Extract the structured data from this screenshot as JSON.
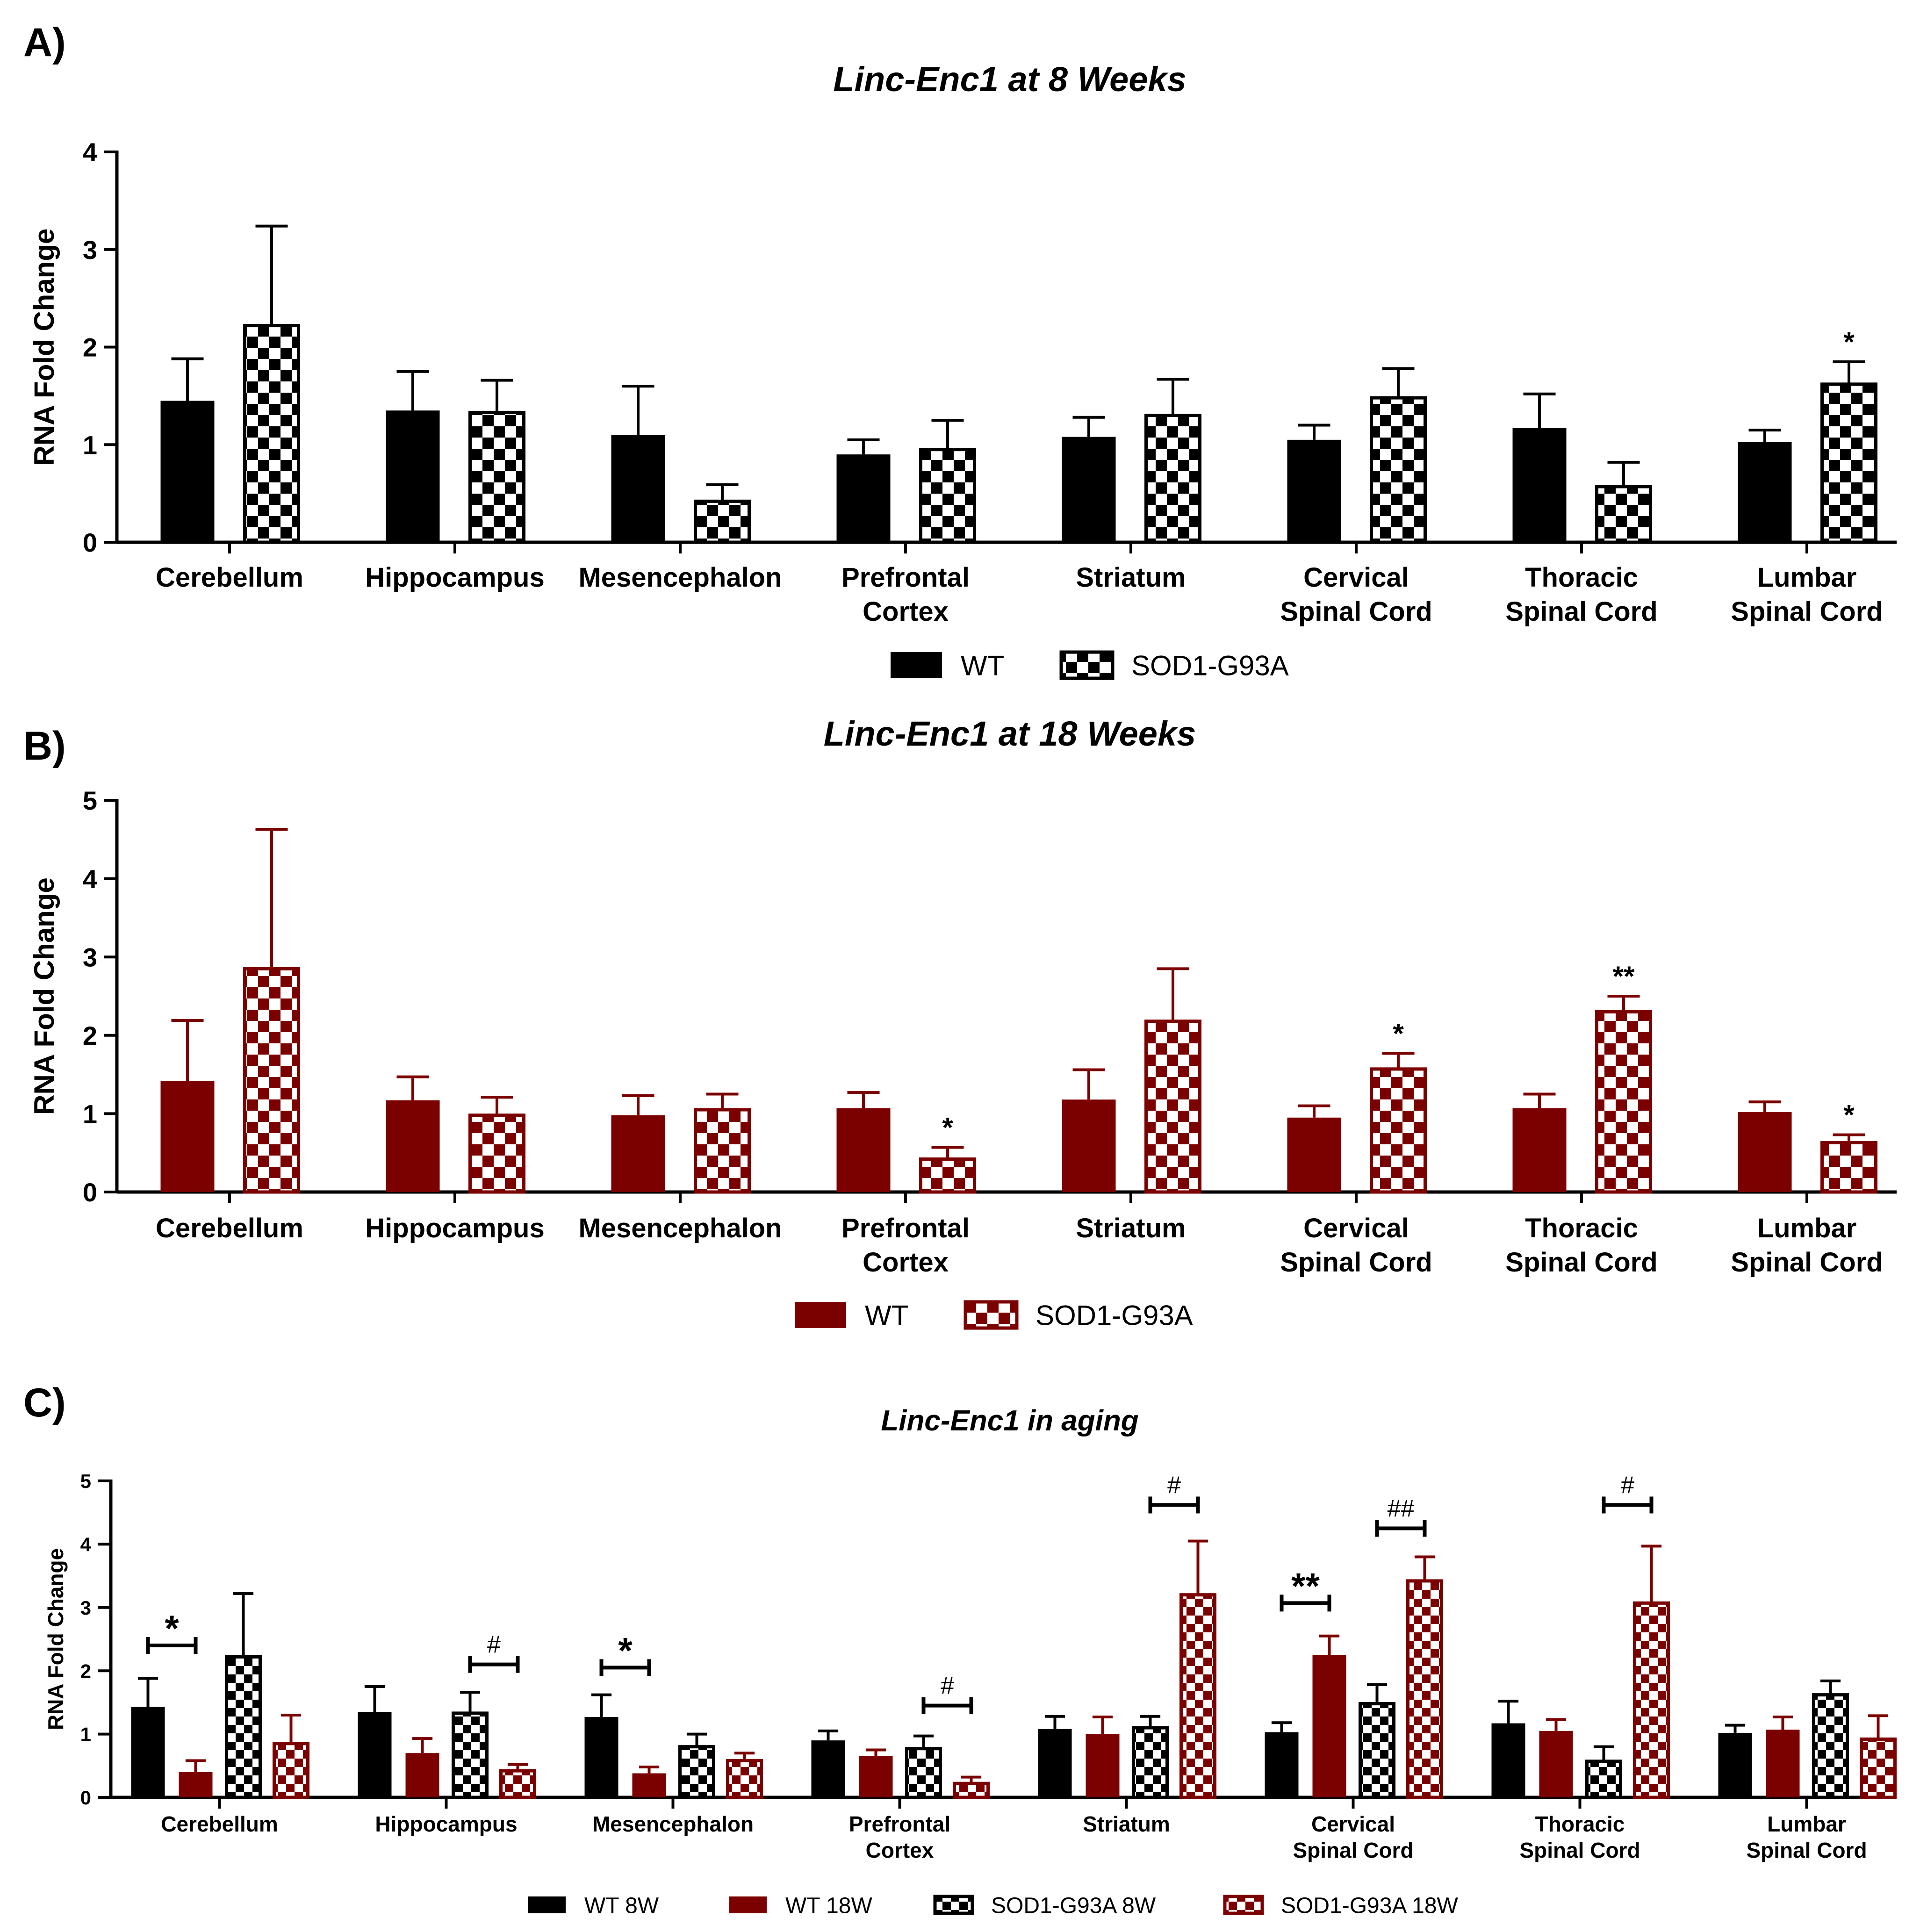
{
  "chart_data": [
    {
      "panel_label": "A)",
      "type": "bar",
      "title": "Linc-Enc1 at 8 Weeks",
      "xlabel": "",
      "ylabel": "RNA Fold Change",
      "ylim": [
        0,
        4
      ],
      "yticks": [
        "0",
        "1",
        "2",
        "3",
        "4"
      ],
      "categories": [
        [
          "Cerebellum"
        ],
        [
          "Hippocampus"
        ],
        [
          "Mesencephalon"
        ],
        [
          "Prefrontal",
          "Cortex"
        ],
        [
          "Striatum"
        ],
        [
          "Cervical",
          "Spinal Cord"
        ],
        [
          "Thoracic",
          "Spinal Cord"
        ],
        [
          "Lumbar",
          "Spinal Cord"
        ]
      ],
      "series": [
        {
          "name": "WT",
          "color": "#000000",
          "pattern": "solid",
          "values": [
            1.45,
            1.35,
            1.1,
            0.9,
            1.08,
            1.05,
            1.17,
            1.03
          ],
          "errors": [
            0.43,
            0.4,
            0.5,
            0.15,
            0.2,
            0.15,
            0.35,
            0.12
          ]
        },
        {
          "name": "SOD1-G93A",
          "color": "#000000",
          "pattern": "checker",
          "values": [
            2.22,
            1.33,
            0.42,
            0.95,
            1.3,
            1.48,
            0.57,
            1.62
          ],
          "errors": [
            1.02,
            0.33,
            0.17,
            0.3,
            0.37,
            0.3,
            0.25,
            0.23
          ]
        }
      ],
      "annotations": [
        {
          "category": 7,
          "series": 1,
          "text": "*"
        }
      ],
      "legend": "bottom"
    },
    {
      "panel_label": "B)",
      "type": "bar",
      "title": "Linc-Enc1 at 18 Weeks",
      "xlabel": "",
      "ylabel": "RNA Fold Change",
      "ylim": [
        0,
        5
      ],
      "yticks": [
        "0",
        "1",
        "2",
        "3",
        "4",
        "5"
      ],
      "categories": [
        [
          "Cerebellum"
        ],
        [
          "Hippocampus"
        ],
        [
          "Mesencephalon"
        ],
        [
          "Prefrontal",
          "Cortex"
        ],
        [
          "Striatum"
        ],
        [
          "Cervical",
          "Spinal Cord"
        ],
        [
          "Thoracic",
          "Spinal Cord"
        ],
        [
          "Lumbar",
          "Spinal Cord"
        ]
      ],
      "series": [
        {
          "name": "WT",
          "color": "#7b0000",
          "pattern": "solid",
          "values": [
            1.42,
            1.17,
            0.98,
            1.07,
            1.18,
            0.95,
            1.07,
            1.02
          ],
          "errors": [
            0.77,
            0.3,
            0.25,
            0.2,
            0.38,
            0.15,
            0.18,
            0.13
          ]
        },
        {
          "name": "SOD1-G93A",
          "color": "#7b0000",
          "pattern": "checker",
          "values": [
            2.85,
            0.98,
            1.05,
            0.42,
            2.18,
            1.57,
            2.3,
            0.63
          ],
          "errors": [
            1.78,
            0.23,
            0.2,
            0.15,
            0.67,
            0.2,
            0.2,
            0.1
          ]
        }
      ],
      "annotations": [
        {
          "category": 3,
          "series": 1,
          "text": "*"
        },
        {
          "category": 5,
          "series": 1,
          "text": "*"
        },
        {
          "category": 6,
          "series": 1,
          "text": "**"
        },
        {
          "category": 7,
          "series": 1,
          "text": "*"
        }
      ],
      "legend": "bottom"
    },
    {
      "panel_label": "C)",
      "type": "bar",
      "title": "Linc-Enc1 in aging",
      "xlabel": "",
      "ylabel": "RNA Fold Change",
      "ylim": [
        0,
        5
      ],
      "yticks": [
        "0",
        "1",
        "2",
        "3",
        "4",
        "5"
      ],
      "categories": [
        [
          "Cerebellum"
        ],
        [
          "Hippocampus"
        ],
        [
          "Mesencephalon"
        ],
        [
          "Prefrontal",
          "Cortex"
        ],
        [
          "Striatum"
        ],
        [
          "Cervical",
          "Spinal Cord"
        ],
        [
          "Thoracic",
          "Spinal Cord"
        ],
        [
          "Lumbar",
          "Spinal Cord"
        ]
      ],
      "series": [
        {
          "name": "WT 8W",
          "color": "#000000",
          "pattern": "solid",
          "values": [
            1.43,
            1.35,
            1.27,
            0.9,
            1.08,
            1.03,
            1.17,
            1.02
          ],
          "errors": [
            0.45,
            0.4,
            0.35,
            0.15,
            0.2,
            0.15,
            0.35,
            0.12
          ]
        },
        {
          "name": "WT 18W",
          "color": "#7b0000",
          "pattern": "solid",
          "values": [
            0.4,
            0.7,
            0.38,
            0.65,
            1.0,
            2.25,
            1.05,
            1.07
          ],
          "errors": [
            0.18,
            0.23,
            0.1,
            0.1,
            0.27,
            0.3,
            0.18,
            0.2
          ]
        },
        {
          "name": "SOD1-G93A 8W",
          "color": "#000000",
          "pattern": "checker",
          "values": [
            2.22,
            1.33,
            0.8,
            0.77,
            1.1,
            1.48,
            0.57,
            1.62
          ],
          "errors": [
            1.0,
            0.33,
            0.2,
            0.2,
            0.18,
            0.3,
            0.23,
            0.22
          ]
        },
        {
          "name": "SOD1-G93A 18W",
          "color": "#7b0000",
          "pattern": "checker",
          "values": [
            0.85,
            0.42,
            0.58,
            0.22,
            3.2,
            3.42,
            3.07,
            0.92
          ],
          "errors": [
            0.45,
            0.1,
            0.12,
            0.1,
            0.85,
            0.38,
            0.9,
            0.37
          ]
        }
      ],
      "annotations": [
        {
          "category": 0,
          "series": [
            0,
            1
          ],
          "text": "*",
          "level": 2.4
        },
        {
          "category": 1,
          "series": [
            2,
            3
          ],
          "text": "#",
          "level": 2.1
        },
        {
          "category": 2,
          "series": [
            0,
            1
          ],
          "text": "*",
          "level": 2.05
        },
        {
          "category": 3,
          "series": [
            2,
            3
          ],
          "text": "#",
          "level": 1.45
        },
        {
          "category": 4,
          "series": [
            2,
            3
          ],
          "text": "#",
          "level": 4.62
        },
        {
          "category": 5,
          "series": [
            0,
            1
          ],
          "text": "**",
          "level": 3.07
        },
        {
          "category": 5,
          "series": [
            2,
            3
          ],
          "text": "##",
          "level": 4.25
        },
        {
          "category": 6,
          "series": [
            2,
            3
          ],
          "text": "#",
          "level": 4.62
        }
      ],
      "legend": "bottom"
    }
  ]
}
